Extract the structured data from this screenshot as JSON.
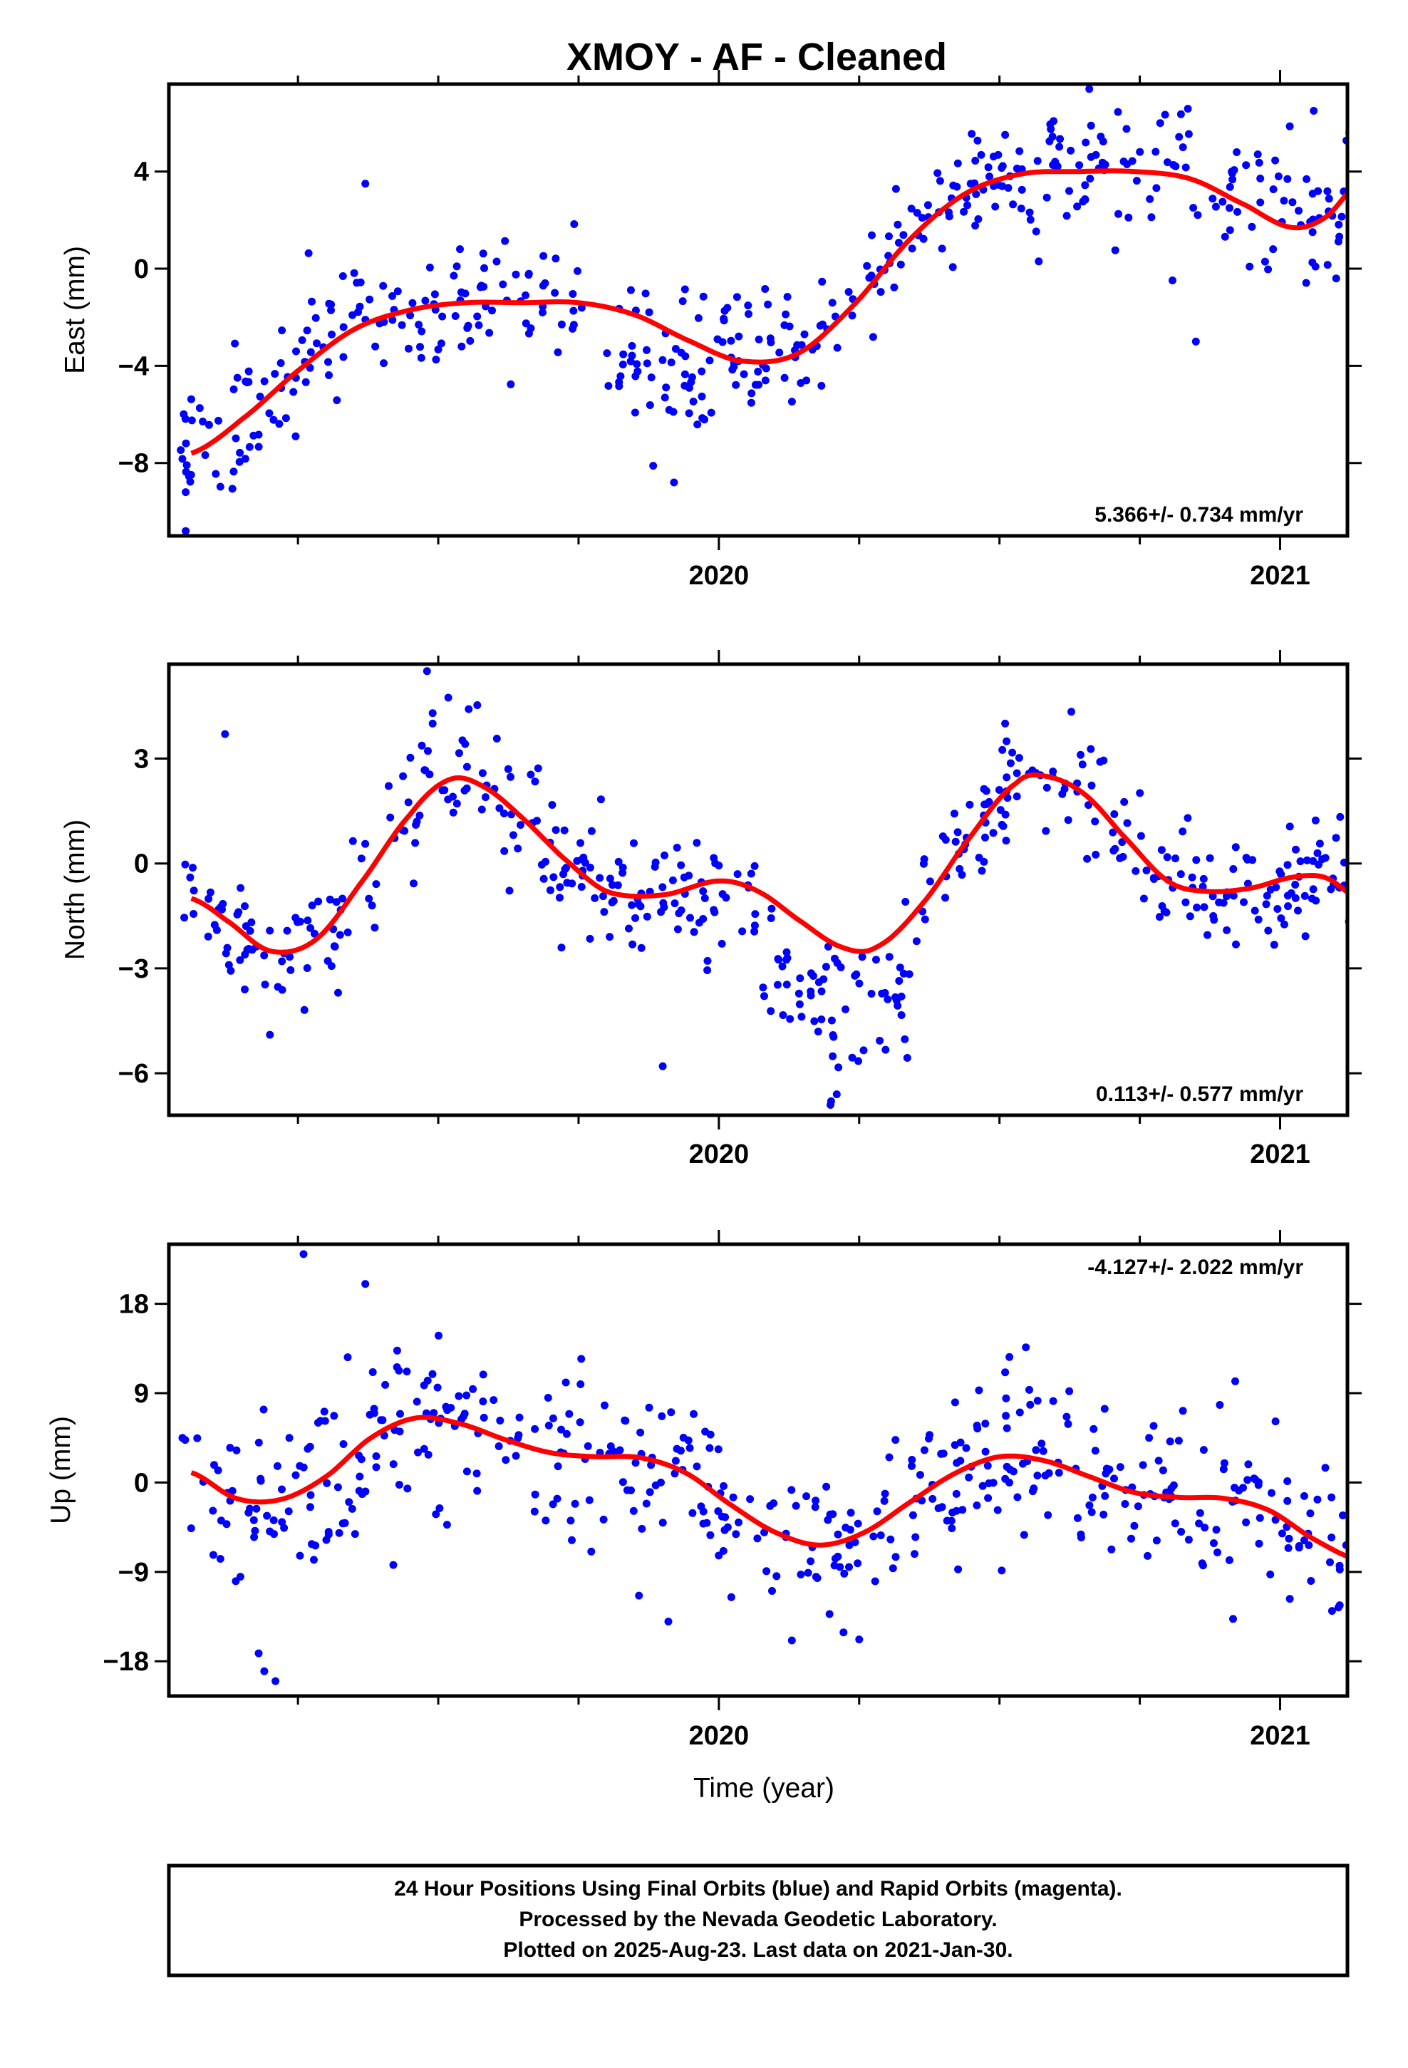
{
  "title": "XMOY  - AF - Cleaned",
  "footer": {
    "lines": [
      "24 Hour Positions Using Final Orbits (blue) and Rapid Orbits (magenta).",
      "Processed by the Nevada Geodetic Laboratory.",
      "Plotted on 2025-Aug-23. Last data on 2021-Jan-30."
    ]
  },
  "colors": {
    "points": "#0000ff",
    "fit": "#ff0000",
    "frame": "#000000"
  },
  "chart_data": [
    {
      "type": "scatter",
      "ylabel": "East (mm)",
      "xlabel": "",
      "xlim": [
        2019.02,
        2021.12
      ],
      "ylim": [
        -11,
        7.6
      ],
      "xticks": [
        2020,
        2021
      ],
      "yticks": [
        -8,
        -4,
        0,
        4
      ],
      "rate": "5.366+/- 0.734 mm/yr",
      "rate_position": "bottom-right",
      "grid": false,
      "fit_knots": [
        [
          2019.06,
          -7.6
        ],
        [
          2019.15,
          -6.2
        ],
        [
          2019.25,
          -4.2
        ],
        [
          2019.35,
          -2.5
        ],
        [
          2019.45,
          -1.7
        ],
        [
          2019.55,
          -1.4
        ],
        [
          2019.65,
          -1.4
        ],
        [
          2019.75,
          -1.4
        ],
        [
          2019.85,
          -1.9
        ],
        [
          2019.95,
          -3.0
        ],
        [
          2020.04,
          -3.8
        ],
        [
          2020.14,
          -3.5
        ],
        [
          2020.24,
          -1.5
        ],
        [
          2020.34,
          1.2
        ],
        [
          2020.44,
          3.1
        ],
        [
          2020.54,
          3.9
        ],
        [
          2020.64,
          4.0
        ],
        [
          2020.74,
          4.0
        ],
        [
          2020.84,
          3.7
        ],
        [
          2020.94,
          2.6
        ],
        [
          2021.02,
          1.7
        ],
        [
          2021.08,
          2.1
        ],
        [
          2021.14,
          3.5
        ]
      ],
      "scatter": {
        "sd": 1.3,
        "count": 470
      },
      "segments": [
        {
          "range": [
            2019.04,
            2019.76
          ],
          "offset": 0.2
        },
        {
          "range": [
            2019.8,
            2019.99
          ],
          "offset": -1.5
        },
        {
          "range": [
            2019.99,
            2020.12
          ],
          "offset": 0.0
        },
        {
          "range": [
            2020.12,
            2021.14
          ],
          "offset": 0.2
        }
      ],
      "outliers": [
        [
          2019.05,
          -10.8
        ],
        [
          2019.05,
          -9.2
        ],
        [
          2019.37,
          3.5
        ],
        [
          2019.92,
          -8.8
        ],
        [
          2020.85,
          -3.0
        ],
        [
          2021.1,
          -0.4
        ],
        [
          2020.57,
          0.3
        ],
        [
          2020.66,
          7.4
        ],
        [
          2021.06,
          6.5
        ]
      ]
    },
    {
      "type": "scatter",
      "ylabel": "North (mm)",
      "xlabel": "",
      "xlim": [
        2019.02,
        2021.12
      ],
      "ylim": [
        -7.2,
        5.7
      ],
      "xticks": [
        2020,
        2021
      ],
      "yticks": [
        -6,
        -3,
        0,
        3
      ],
      "rate": "0.113+/- 0.577 mm/yr",
      "rate_position": "bottom-right",
      "grid": false,
      "fit_knots": [
        [
          2019.06,
          -1.0
        ],
        [
          2019.12,
          -1.6
        ],
        [
          2019.2,
          -2.5
        ],
        [
          2019.28,
          -2.2
        ],
        [
          2019.36,
          -0.6
        ],
        [
          2019.45,
          1.4
        ],
        [
          2019.52,
          2.4
        ],
        [
          2019.58,
          2.2
        ],
        [
          2019.65,
          1.3
        ],
        [
          2019.72,
          0.2
        ],
        [
          2019.8,
          -0.8
        ],
        [
          2019.9,
          -0.9
        ],
        [
          2020.0,
          -0.5
        ],
        [
          2020.07,
          -0.8
        ],
        [
          2020.15,
          -1.7
        ],
        [
          2020.22,
          -2.4
        ],
        [
          2020.28,
          -2.4
        ],
        [
          2020.36,
          -1.2
        ],
        [
          2020.45,
          0.8
        ],
        [
          2020.53,
          2.3
        ],
        [
          2020.58,
          2.5
        ],
        [
          2020.65,
          2.0
        ],
        [
          2020.72,
          0.8
        ],
        [
          2020.8,
          -0.5
        ],
        [
          2020.87,
          -0.8
        ],
        [
          2020.95,
          -0.7
        ],
        [
          2021.02,
          -0.4
        ],
        [
          2021.08,
          -0.4
        ],
        [
          2021.14,
          -1.0
        ]
      ],
      "scatter": {
        "sd": 0.95,
        "count": 470
      },
      "segments": [
        {
          "range": [
            2019.04,
            2019.9
          ],
          "offset": 0.0
        },
        {
          "range": [
            2019.9,
            2020.07
          ],
          "offset": -0.2
        },
        {
          "range": [
            2020.07,
            2020.34
          ],
          "offset": -1.8
        },
        {
          "range": [
            2020.34,
            2021.14
          ],
          "offset": 0.0
        }
      ],
      "outliers": [
        [
          2019.48,
          5.5
        ],
        [
          2019.49,
          4.3
        ],
        [
          2019.49,
          4.0
        ],
        [
          2019.2,
          -4.9
        ],
        [
          2019.9,
          -5.8
        ],
        [
          2020.2,
          -6.8
        ],
        [
          2020.21,
          -6.6
        ],
        [
          2020.51,
          4.0
        ],
        [
          2019.12,
          3.7
        ]
      ]
    },
    {
      "type": "scatter",
      "ylabel": "Up (mm)",
      "xlabel": "Time (year)",
      "xlim": [
        2019.02,
        2021.12
      ],
      "ylim": [
        -21.5,
        24
      ],
      "xticks": [
        2020,
        2021
      ],
      "yticks": [
        -18,
        -9,
        0,
        9,
        18
      ],
      "rate": "-4.127+/- 2.022 mm/yr",
      "rate_position": "top-right",
      "grid": false,
      "fit_knots": [
        [
          2019.06,
          1.0
        ],
        [
          2019.14,
          -1.6
        ],
        [
          2019.22,
          -1.7
        ],
        [
          2019.3,
          0.6
        ],
        [
          2019.38,
          4.5
        ],
        [
          2019.46,
          6.5
        ],
        [
          2019.54,
          5.9
        ],
        [
          2019.62,
          4.3
        ],
        [
          2019.7,
          3.0
        ],
        [
          2019.78,
          2.6
        ],
        [
          2019.86,
          2.5
        ],
        [
          2019.94,
          1.0
        ],
        [
          2020.02,
          -2.2
        ],
        [
          2020.1,
          -5.0
        ],
        [
          2020.18,
          -6.3
        ],
        [
          2020.26,
          -5.0
        ],
        [
          2020.34,
          -2.0
        ],
        [
          2020.42,
          0.9
        ],
        [
          2020.5,
          2.6
        ],
        [
          2020.58,
          2.2
        ],
        [
          2020.66,
          0.6
        ],
        [
          2020.74,
          -1.0
        ],
        [
          2020.82,
          -1.5
        ],
        [
          2020.9,
          -1.6
        ],
        [
          2020.98,
          -2.8
        ],
        [
          2021.06,
          -5.7
        ],
        [
          2021.14,
          -7.8
        ]
      ],
      "scatter": {
        "sd": 4.2,
        "count": 470
      },
      "segments": [
        {
          "range": [
            2019.04,
            2021.14
          ],
          "offset": 0.0
        }
      ],
      "outliers": [
        [
          2019.26,
          23.0
        ],
        [
          2019.37,
          20.0
        ],
        [
          2019.19,
          -19.0
        ],
        [
          2019.21,
          -20.0
        ],
        [
          2019.18,
          -17.2
        ],
        [
          2020.13,
          -15.9
        ],
        [
          2020.25,
          -15.8
        ],
        [
          2019.42,
          -8.3
        ],
        [
          2019.91,
          -14.0
        ],
        [
          2020.51,
          11.1
        ],
        [
          2020.92,
          10.2
        ]
      ]
    }
  ]
}
